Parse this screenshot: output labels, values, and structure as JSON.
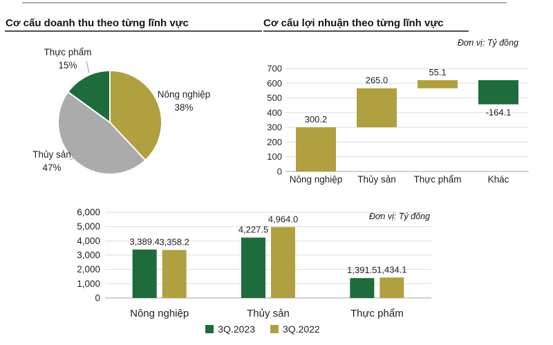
{
  "chart_data": [
    {
      "id": "revenue_structure_pie",
      "type": "pie",
      "title": "Cơ cấu doanh thu theo từng lĩnh vực",
      "labels": [
        "Nông nghiệp",
        "Thủy sản",
        "Thực phẩm"
      ],
      "values": [
        38,
        47,
        15
      ],
      "pct_labels": [
        "38%",
        "47%",
        "15%"
      ],
      "colors": [
        "#B0A03F",
        "#ABABAB",
        "#1E6B3C"
      ],
      "start_angle_deg": 0,
      "direction": "clockwise",
      "slice_border_color": "#ffffff"
    },
    {
      "id": "profit_structure_waterfall",
      "type": "bar",
      "subtype": "waterfall",
      "title": "Cơ cấu lợi nhuận theo từng lĩnh vực",
      "unit_label": "Đơn vị: Tỷ đồng",
      "categories": [
        "Nông nghiệp",
        "Thủy sản",
        "Thực phẩm",
        "Khác"
      ],
      "values": [
        300.2,
        265.0,
        55.1,
        -164.1
      ],
      "value_labels": [
        "300.2",
        "265.0",
        "55.1",
        "-164.1"
      ],
      "ylim": [
        0,
        700
      ],
      "ytick_step": 100,
      "yticks": [
        "0",
        "100",
        "200",
        "300",
        "400",
        "500",
        "600",
        "700"
      ],
      "grid": true,
      "positive_color": "#B0A03F",
      "negative_color": "#1E6B3C"
    },
    {
      "id": "revenue_by_segment_grouped_bar",
      "type": "bar",
      "subtype": "grouped",
      "unit_label": "Đơn vị: Tỷ đồng",
      "categories": [
        "Nông nghiệp",
        "Thủy sản",
        "Thực phẩm"
      ],
      "series": [
        {
          "name": "3Q.2023",
          "color": "#1E6B3C",
          "values": [
            3389.4,
            4227.5,
            1391.5
          ],
          "value_labels": [
            "3,389.4",
            "4,227.5",
            "1,391.5"
          ]
        },
        {
          "name": "3Q.2022",
          "color": "#B0A03F",
          "values": [
            3358.2,
            4964.0,
            1434.1
          ],
          "value_labels": [
            "3,358.2",
            "4,964.0",
            "1,434.1"
          ]
        }
      ],
      "ylim": [
        0,
        6000
      ],
      "ytick_step": 1000,
      "yticks": [
        "0",
        "1,000",
        "2,000",
        "3,000",
        "4,000",
        "5,000",
        "6,000"
      ],
      "grid": true,
      "legend_position": "bottom"
    }
  ],
  "style": {
    "grid_color": "#dedede",
    "axis_color": "#c2c2c2",
    "leader_line_color": "#b8b8b8"
  }
}
